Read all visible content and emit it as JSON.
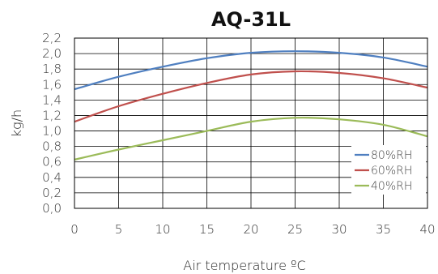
{
  "chart_data": {
    "type": "line",
    "title": "AQ-31L",
    "xlabel": "Air temperature ºC",
    "ylabel": "kg/h",
    "xlim": [
      0,
      40
    ],
    "ylim": [
      0,
      2.2
    ],
    "x_ticks": [
      "0",
      "5",
      "10",
      "15",
      "20",
      "25",
      "30",
      "35",
      "40"
    ],
    "y_ticks": [
      "0,0",
      "0,2",
      "0,4",
      "0,6",
      "0,8",
      "1,0",
      "1,2",
      "1,4",
      "1,6",
      "1,8",
      "2,0",
      "2,2"
    ],
    "grid": true,
    "legend_position": "bottom-right",
    "x": [
      0,
      5,
      10,
      15,
      20,
      25,
      30,
      35,
      40
    ],
    "series": [
      {
        "name": "80%RH",
        "color": "#4f7fc0",
        "values": [
          1.54,
          1.7,
          1.83,
          1.94,
          2.01,
          2.03,
          2.01,
          1.95,
          1.83
        ]
      },
      {
        "name": "60%RH",
        "color": "#c0504d",
        "values": [
          1.12,
          1.32,
          1.48,
          1.62,
          1.73,
          1.77,
          1.75,
          1.68,
          1.56
        ]
      },
      {
        "name": "40%RH",
        "color": "#9bbb59",
        "values": [
          0.63,
          0.76,
          0.88,
          1.0,
          1.12,
          1.17,
          1.15,
          1.08,
          0.93
        ]
      }
    ]
  }
}
